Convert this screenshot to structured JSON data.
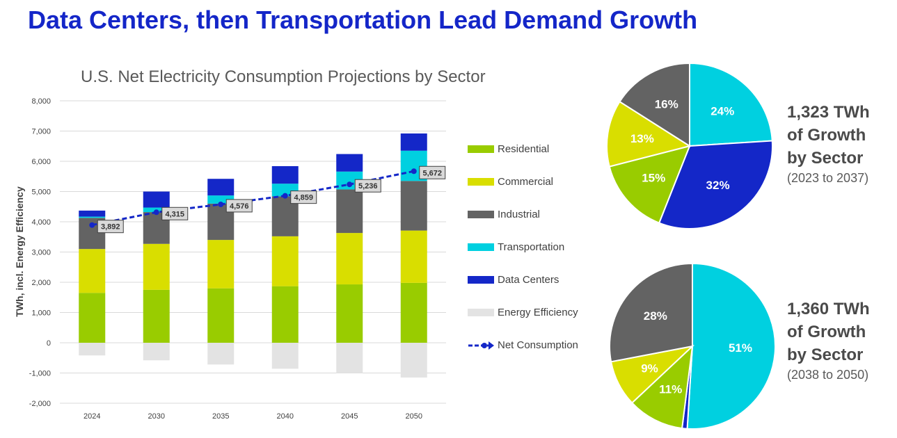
{
  "page_title": "Data Centers, then Transportation Lead Demand Growth",
  "colors": {
    "Residential": "#99cc00",
    "Commercial": "#d9de00",
    "Industrial": "#636363",
    "Transportation": "#00d0e0",
    "Data Centers": "#1427c8",
    "Energy Efficiency": "#e3e3e3",
    "Net Consumption": "#1427c8"
  },
  "legend": [
    {
      "label": "Residential"
    },
    {
      "label": "Commercial"
    },
    {
      "label": "Industrial"
    },
    {
      "label": "Transportation"
    },
    {
      "label": "Data Centers"
    },
    {
      "label": "Energy Efficiency"
    },
    {
      "label": "Net Consumption"
    }
  ],
  "chart_data": [
    {
      "type": "bar",
      "stacked": true,
      "title": "U.S. Net Electricity Consumption Projections by Sector",
      "xlabel": "",
      "ylabel": "TWh, incl. Energy Efficiency",
      "ylim": [
        -2000,
        8000
      ],
      "yticks": [
        8000,
        7000,
        6000,
        5000,
        4000,
        3000,
        2000,
        1000,
        0,
        -1000,
        -2000
      ],
      "ytick_labels": [
        "8,000",
        "7,000",
        "6,000",
        "5,000",
        "4,000",
        "3,000",
        "2,000",
        "1,000",
        "0",
        "-1,000",
        "-2,000"
      ],
      "grid": true,
      "legend_position": "right",
      "categories": [
        "2024",
        "2030",
        "2035",
        "2040",
        "2045",
        "2050"
      ],
      "series": [
        {
          "name": "Residential",
          "values": [
            1650,
            1750,
            1800,
            1870,
            1930,
            1980
          ]
        },
        {
          "name": "Commercial",
          "values": [
            1450,
            1520,
            1600,
            1650,
            1700,
            1730
          ]
        },
        {
          "name": "Industrial",
          "values": [
            1030,
            1050,
            1200,
            1320,
            1440,
            1640
          ]
        },
        {
          "name": "Transportation",
          "values": [
            40,
            150,
            270,
            420,
            590,
            1000
          ]
        },
        {
          "name": "Data Centers",
          "values": [
            200,
            530,
            550,
            580,
            580,
            570
          ]
        },
        {
          "name": "Energy Efficiency",
          "values": [
            -420,
            -580,
            -720,
            -860,
            -1000,
            -1150
          ]
        }
      ],
      "line": {
        "name": "Net Consumption",
        "values": [
          3892,
          4315,
          4576,
          4859,
          5236,
          5672
        ],
        "labels": [
          "3,892",
          "4,315",
          "4,576",
          "4,859",
          "5,236",
          "5,672"
        ]
      }
    },
    {
      "type": "pie",
      "title": "1,323 TWh\nof Growth\nby Sector",
      "subtitle": "(2023 to 2037)",
      "slices": [
        {
          "name": "Transportation",
          "value": 24,
          "label": "24%"
        },
        {
          "name": "Data Centers",
          "value": 32,
          "label": "32%"
        },
        {
          "name": "Residential",
          "value": 15,
          "label": "15%"
        },
        {
          "name": "Commercial",
          "value": 13,
          "label": "13%"
        },
        {
          "name": "Industrial",
          "value": 16,
          "label": "16%"
        }
      ]
    },
    {
      "type": "pie",
      "title": "1,360 TWh\nof Growth\nby Sector",
      "subtitle": "(2038 to 2050)",
      "slices": [
        {
          "name": "Transportation",
          "value": 51,
          "label": "51%"
        },
        {
          "name": "Data Centers",
          "value": 1,
          "label": ""
        },
        {
          "name": "Residential",
          "value": 11,
          "label": "11%"
        },
        {
          "name": "Commercial",
          "value": 9,
          "label": "9%"
        },
        {
          "name": "Industrial",
          "value": 28,
          "label": "28%"
        }
      ]
    }
  ]
}
